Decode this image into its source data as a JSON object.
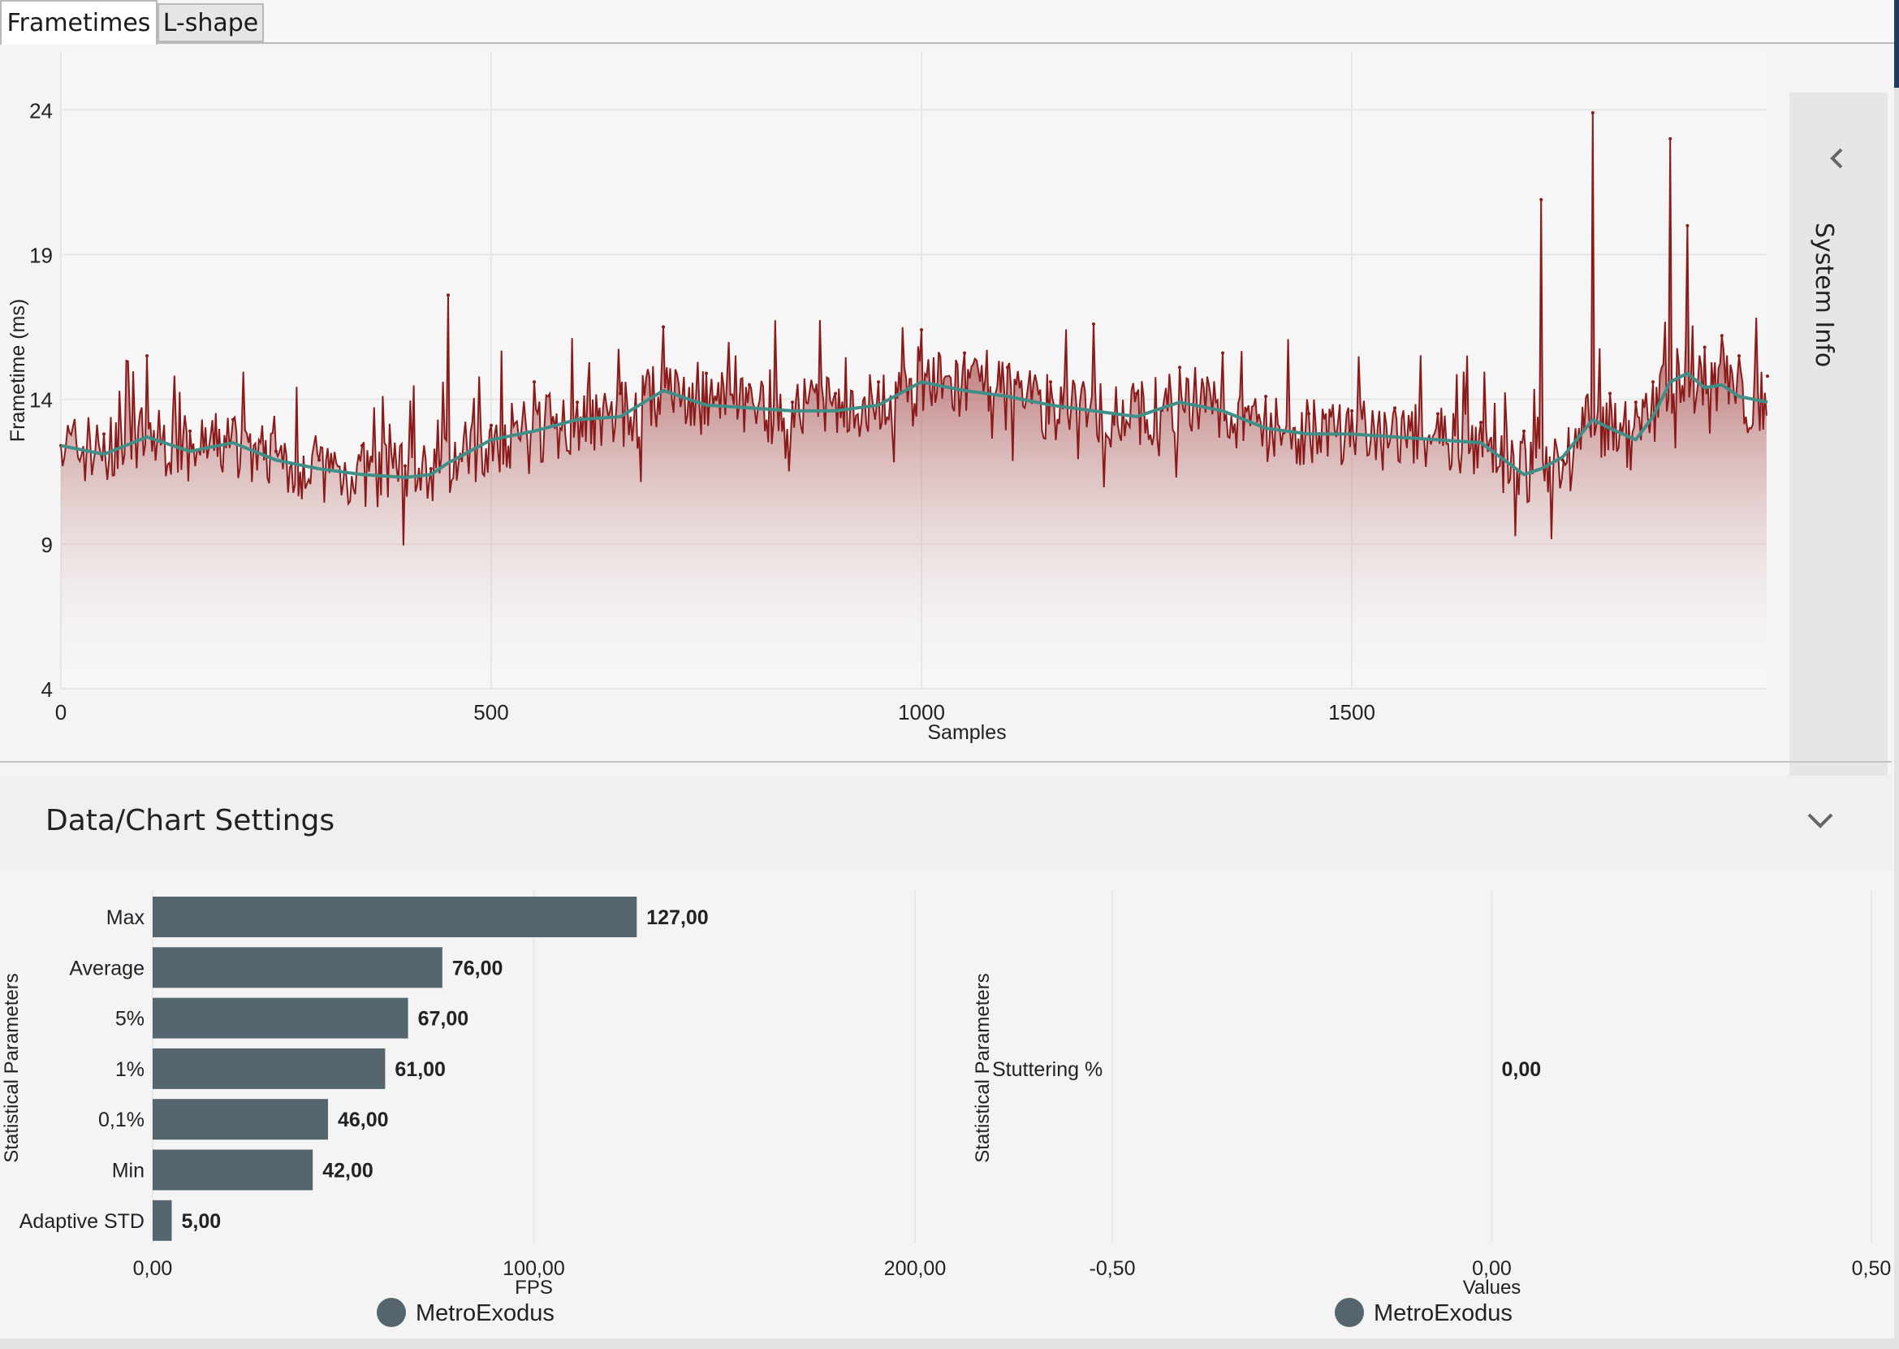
{
  "tabs": [
    {
      "label": "Frametimes",
      "active": true
    },
    {
      "label": "L-shape",
      "active": false
    }
  ],
  "system_info": {
    "label": "System Info"
  },
  "settings": {
    "title": "Data/Chart Settings"
  },
  "colors": {
    "frametime_line": "#8b1a1a",
    "moving_average": "#3f8f88",
    "bar": "#546570",
    "legend_dot": "#546570"
  },
  "chart_data": [
    {
      "type": "line",
      "title": "",
      "xlabel": "Samples",
      "ylabel": "Frametime (ms)",
      "xlim": [
        0,
        1983
      ],
      "ylim": [
        4,
        26
      ],
      "xticks": [
        "0",
        "500",
        "1000",
        "1500"
      ],
      "yticks": [
        "4",
        "9",
        "14",
        "19",
        "24"
      ],
      "series": [
        {
          "name": "Frametime (ms)",
          "x": [
            0,
            50,
            100,
            150,
            200,
            250,
            300,
            350,
            400,
            430,
            450,
            500,
            550,
            600,
            650,
            700,
            750,
            800,
            850,
            900,
            950,
            1000,
            1050,
            1100,
            1150,
            1200,
            1250,
            1300,
            1350,
            1400,
            1450,
            1500,
            1550,
            1600,
            1650,
            1700,
            1720,
            1745,
            1780,
            1800,
            1830,
            1850,
            1870,
            1890,
            1910,
            1930,
            1950,
            1983
          ],
          "values": [
            12.4,
            12.8,
            15.5,
            12.9,
            13.3,
            12.2,
            11.9,
            12.4,
            11.7,
            11.6,
            17.6,
            13.1,
            14.6,
            13.9,
            14.2,
            16.5,
            14.9,
            14.5,
            13.9,
            14.2,
            14.6,
            16.4,
            15.6,
            15.1,
            14.6,
            16.6,
            14.2,
            15.1,
            15.6,
            14.1,
            13.5,
            13.6,
            13.7,
            13.5,
            13.2,
            12.9,
            20.9,
            11.9,
            23.9,
            14.2,
            13.9,
            14.6,
            23.0,
            20.0,
            15.8,
            16.2,
            15.5,
            14.8
          ]
        },
        {
          "name": "Moving average",
          "x": [
            0,
            50,
            100,
            150,
            200,
            250,
            300,
            350,
            400,
            430,
            450,
            500,
            550,
            600,
            650,
            700,
            750,
            800,
            850,
            900,
            950,
            1000,
            1050,
            1100,
            1150,
            1200,
            1250,
            1300,
            1350,
            1400,
            1450,
            1500,
            1550,
            1600,
            1650,
            1700,
            1720,
            1745,
            1780,
            1800,
            1830,
            1850,
            1870,
            1890,
            1910,
            1930,
            1950,
            1983
          ],
          "values": [
            12.4,
            12.1,
            12.7,
            12.2,
            12.5,
            11.9,
            11.6,
            11.4,
            11.3,
            11.4,
            11.8,
            12.6,
            12.9,
            13.3,
            13.4,
            14.3,
            13.8,
            13.7,
            13.6,
            13.6,
            13.8,
            14.6,
            14.3,
            14.1,
            13.8,
            13.6,
            13.4,
            13.9,
            13.6,
            13.0,
            12.8,
            12.8,
            12.7,
            12.6,
            12.5,
            11.4,
            11.6,
            12.0,
            13.3,
            13.0,
            12.6,
            13.4,
            14.6,
            14.9,
            14.4,
            14.5,
            14.1,
            13.9
          ]
        }
      ]
    },
    {
      "type": "bar",
      "orientation": "horizontal",
      "xlabel": "FPS",
      "ylabel": "Statistical Parameters",
      "xlim": [
        0,
        200
      ],
      "xticks": [
        "0,00",
        "100,00",
        "200,00"
      ],
      "categories": [
        "Max",
        "Average",
        "5%",
        "1%",
        "0,1%",
        "Min",
        "Adaptive STD"
      ],
      "values": [
        127,
        76,
        67,
        61,
        46,
        42,
        5
      ],
      "value_labels": [
        "127,00",
        "76,00",
        "67,00",
        "61,00",
        "46,00",
        "42,00",
        "5,00"
      ],
      "legend": [
        "MetroExodus"
      ]
    },
    {
      "type": "bar",
      "orientation": "horizontal",
      "xlabel": "Values",
      "ylabel": "Statistical Parameters",
      "xlim": [
        -0.5,
        0.5
      ],
      "xticks": [
        "-0,50",
        "0,00",
        "0,50"
      ],
      "categories": [
        "Stuttering %"
      ],
      "values": [
        0
      ],
      "value_labels": [
        "0,00"
      ],
      "legend": [
        "MetroExodus"
      ]
    }
  ]
}
